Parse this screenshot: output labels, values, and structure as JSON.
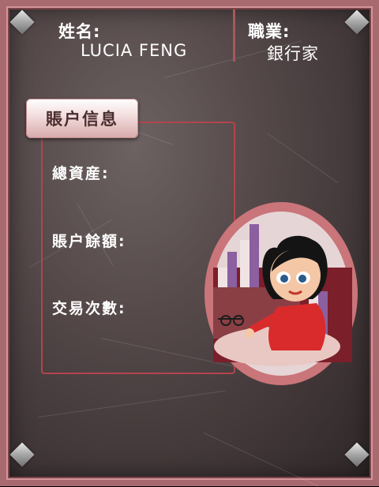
{
  "profile": {
    "name_label": "姓名:",
    "name_value": "LUCIA FENG",
    "job_label": "職業:",
    "job_value": "銀行家"
  },
  "account": {
    "tab_label": "賬户信息",
    "fields": [
      {
        "label": "總資産:"
      },
      {
        "label": "賬户餘額:"
      },
      {
        "label": "交易次數:"
      }
    ]
  },
  "colors": {
    "frame": "#a86a6f",
    "panel_border": "#b2454d",
    "avatar_ring": "#c97579"
  },
  "icons": {
    "avatar": "banker-woman-illustration",
    "corners": "metal-rivet-icon"
  }
}
